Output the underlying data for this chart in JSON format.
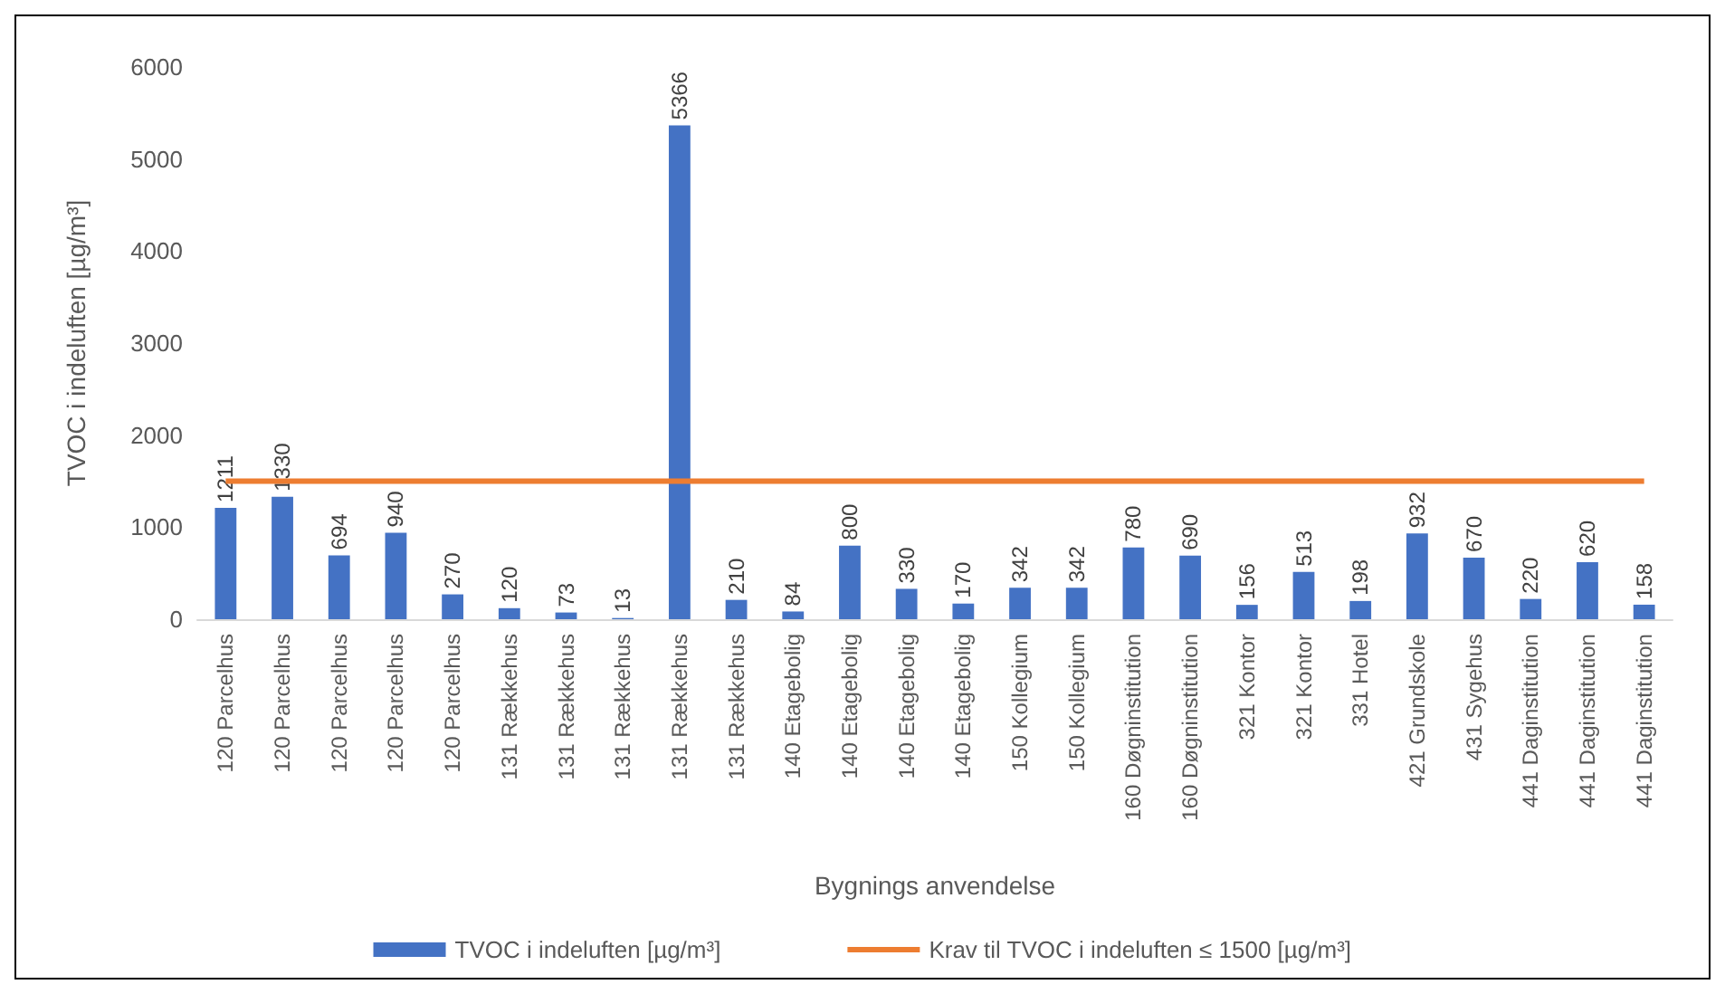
{
  "chart_data": {
    "type": "bar",
    "xlabel": "Bygnings anvendelse",
    "ylabel": "TVOC i indeluften [µg/m³]",
    "categories": [
      "120 Parcelhus",
      "120 Parcelhus",
      "120 Parcelhus",
      "120 Parcelhus",
      "120 Parcelhus",
      "131 Rækkehus",
      "131 Rækkehus",
      "131 Rækkehus",
      "131 Rækkehus",
      "131 Rækkehus",
      "140 Etagebolig",
      "140 Etagebolig",
      "140 Etagebolig",
      "140 Etagebolig",
      "150 Kollegium",
      "150 Kollegium",
      "160 Døgninstitution",
      "160 Døgninstitution",
      "321 Kontor",
      "321 Kontor",
      "331 Hotel",
      "421 Grundskole",
      "431 Sygehus",
      "441 Daginstitution",
      "441 Daginstitution",
      "441 Daginstitution"
    ],
    "series": [
      {
        "name": "TVOC i indeluften [µg/m³]",
        "color": "#4472c4",
        "values": [
          1211,
          1330,
          694,
          940,
          270,
          120,
          73,
          13,
          5366,
          210,
          84,
          800,
          330,
          170,
          342,
          342,
          780,
          690,
          156,
          513,
          198,
          932,
          670,
          220,
          620,
          158
        ],
        "value_labels": [
          "1211",
          "1330",
          "694",
          "940",
          "270",
          "120",
          "73",
          "13",
          "5366",
          "210",
          "84",
          "800",
          "330",
          "170",
          "342",
          "342",
          "780",
          "690",
          "156",
          "513",
          "198",
          "932",
          "670",
          "220",
          "620",
          "158"
        ]
      },
      {
        "name": "Krav til TVOC i indeluften ≤ 1500 [µg/m³]",
        "type": "line",
        "color": "#ed7d31",
        "values": [
          1500,
          1500,
          1500,
          1500,
          1500,
          1500,
          1500,
          1500,
          1500,
          1500,
          1500,
          1500,
          1500,
          1500,
          1500,
          1500,
          1500,
          1500,
          1500,
          1500,
          1500,
          1500,
          1500,
          1500,
          1500,
          1500
        ]
      }
    ],
    "ylim": [
      0,
      6000
    ],
    "yticks": [
      0,
      1000,
      2000,
      3000,
      4000,
      5000,
      6000
    ],
    "grid": false,
    "legend": "bottom",
    "marker": "none",
    "line_style": "solid"
  }
}
